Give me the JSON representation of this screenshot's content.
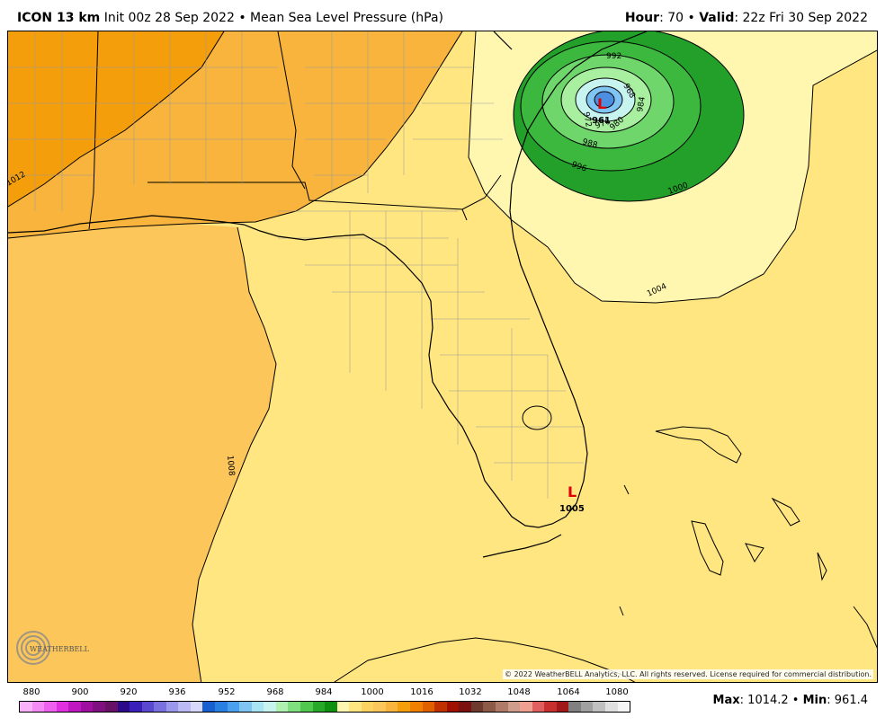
{
  "header": {
    "model": "ICON 13 km",
    "init": "Init 00z 28 Sep 2022",
    "field": "Mean Sea Level Pressure (hPa)",
    "hour_label": "Hour",
    "hour_value": ": 70",
    "valid_label": "Valid",
    "valid_value": ": 22z Fri 30 Sep 2022",
    "sep": "•"
  },
  "map": {
    "copyright": "© 2022 WeatherBELL Analytics, LLC. All rights reserved. License required for commercial distribution.",
    "logo_text": "WEATHERBELL",
    "lows": [
      {
        "symbol": "L",
        "value": "961"
      },
      {
        "symbol": "L",
        "value": "1005"
      }
    ],
    "contours": [
      "992",
      "968",
      "984",
      "972",
      "976",
      "980",
      "988",
      "996",
      "1000",
      "1004",
      "1008",
      "1012"
    ],
    "colors": {
      "orange_dark": "#F59E0B",
      "orange": "#F8B43C",
      "orange_light": "#FCC65A",
      "yellow": "#FFE680",
      "yellow_pale": "#FFF7B0",
      "green_dark": "#22A02A",
      "green": "#3CB83E",
      "green_light": "#6ED66A",
      "green_pale": "#A8EFA0",
      "blue_pale": "#B8E8F0",
      "blue": "#4A8FE0",
      "low_marker": "#E00000"
    }
  },
  "colorbar": {
    "labels": [
      "880",
      "900",
      "920",
      "936",
      "952",
      "968",
      "984",
      "1000",
      "1016",
      "1032",
      "1048",
      "1064",
      "1080"
    ],
    "colors": [
      "#F9B2F9",
      "#F48AF4",
      "#EE60EE",
      "#E030E0",
      "#C018C0",
      "#A010A0",
      "#801080",
      "#661066",
      "#2A0A8A",
      "#3A20B8",
      "#5A48D0",
      "#7A70E0",
      "#9A98EC",
      "#BCBAF4",
      "#D8D8FA",
      "#1860D0",
      "#2A80E0",
      "#4AA0EC",
      "#80C4F4",
      "#A8E4F4",
      "#C8F4F0",
      "#B0F0B0",
      "#80E080",
      "#50C850",
      "#28A828",
      "#109010",
      "#FFF7B0",
      "#FFE680",
      "#FCD260",
      "#FCC65A",
      "#F8B43C",
      "#F59E0B",
      "#F08000",
      "#E06000",
      "#C03000",
      "#A01000",
      "#7A1010",
      "#6E3A30",
      "#8E5A48",
      "#B07A68",
      "#D09C8C",
      "#F0A090",
      "#E06060",
      "#C83030",
      "#A01818",
      "#808080",
      "#A0A0A0",
      "#C0C0C0",
      "#E0E0E0",
      "#F4F4F4"
    ]
  },
  "stats": {
    "max_label": "Max",
    "max_value": ": 1014.2",
    "min_label": "Min",
    "min_value": ": 961.4",
    "sep": "•"
  }
}
